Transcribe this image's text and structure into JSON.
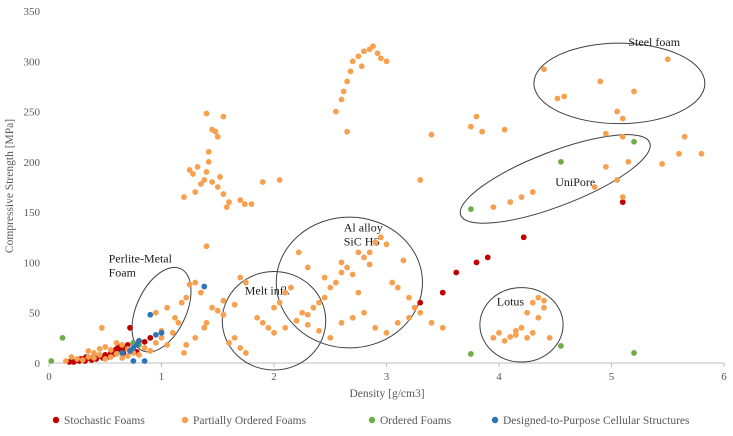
{
  "chart_data": {
    "type": "scatter",
    "xlabel": "Density [g/cm3]",
    "ylabel": "Compressive Strength [MPa]",
    "xlim": [
      0,
      6
    ],
    "ylim": [
      0,
      350
    ],
    "xticks": [
      0,
      1,
      2,
      3,
      4,
      5,
      6
    ],
    "yticks": [
      0,
      50,
      100,
      150,
      200,
      250,
      300,
      350
    ],
    "grid": false,
    "legend_position": "bottom",
    "series": [
      {
        "name": "Stochastic Foams",
        "color": "#c00000",
        "points": [
          [
            0.18,
            1
          ],
          [
            0.2,
            2
          ],
          [
            0.22,
            1
          ],
          [
            0.25,
            3
          ],
          [
            0.27,
            2
          ],
          [
            0.3,
            4
          ],
          [
            0.32,
            2
          ],
          [
            0.35,
            5
          ],
          [
            0.38,
            3
          ],
          [
            0.4,
            6
          ],
          [
            0.42,
            4
          ],
          [
            0.45,
            7
          ],
          [
            0.48,
            5
          ],
          [
            0.5,
            8
          ],
          [
            0.52,
            6
          ],
          [
            0.55,
            10
          ],
          [
            0.57,
            12
          ],
          [
            0.6,
            14
          ],
          [
            0.62,
            16
          ],
          [
            0.64,
            13
          ],
          [
            0.66,
            10
          ],
          [
            0.68,
            15
          ],
          [
            0.7,
            18
          ],
          [
            0.72,
            12
          ],
          [
            0.75,
            20
          ],
          [
            0.78,
            11
          ],
          [
            0.8,
            22
          ],
          [
            0.72,
            35
          ],
          [
            0.85,
            21
          ],
          [
            0.9,
            25
          ],
          [
            3.3,
            60
          ],
          [
            3.5,
            70
          ],
          [
            3.62,
            90
          ],
          [
            3.8,
            100
          ],
          [
            3.9,
            105
          ],
          [
            4.22,
            125
          ],
          [
            5.1,
            160
          ],
          [
            0.28,
            4
          ],
          [
            0.33,
            6
          ],
          [
            0.58,
            9
          ]
        ]
      },
      {
        "name": "Partially Ordered Foams",
        "color": "#f7a04f",
        "points": [
          [
            0.15,
            2
          ],
          [
            0.25,
            4
          ],
          [
            0.3,
            3
          ],
          [
            0.35,
            6
          ],
          [
            0.4,
            5
          ],
          [
            0.45,
            8
          ],
          [
            0.5,
            4
          ],
          [
            0.55,
            6
          ],
          [
            0.6,
            9
          ],
          [
            0.65,
            5
          ],
          [
            0.7,
            7
          ],
          [
            0.75,
            10
          ],
          [
            0.8,
            8
          ],
          [
            0.85,
            15
          ],
          [
            0.9,
            12
          ],
          [
            0.95,
            20
          ],
          [
            1.0,
            25
          ],
          [
            1.05,
            18
          ],
          [
            1.1,
            30
          ],
          [
            1.15,
            40
          ],
          [
            0.35,
            12
          ],
          [
            0.45,
            14
          ],
          [
            0.5,
            16
          ],
          [
            0.55,
            13
          ],
          [
            0.6,
            20
          ],
          [
            0.2,
            6
          ],
          [
            0.4,
            10
          ],
          [
            0.47,
            35
          ],
          [
            0.65,
            18
          ],
          [
            0.7,
            14
          ],
          [
            0.95,
            50
          ],
          [
            1.0,
            32
          ],
          [
            1.05,
            55
          ],
          [
            1.12,
            45
          ],
          [
            1.18,
            60
          ],
          [
            1.22,
            65
          ],
          [
            1.25,
            78
          ],
          [
            1.3,
            80
          ],
          [
            1.38,
            35
          ],
          [
            1.4,
            40
          ],
          [
            1.5,
            52
          ],
          [
            1.55,
            48
          ],
          [
            1.6,
            20
          ],
          [
            1.65,
            25
          ],
          [
            1.7,
            15
          ],
          [
            1.75,
            10
          ],
          [
            1.2,
            10
          ],
          [
            1.22,
            18
          ],
          [
            1.3,
            25
          ],
          [
            1.35,
            70
          ],
          [
            1.3,
            170
          ],
          [
            1.35,
            178
          ],
          [
            1.38,
            182
          ],
          [
            1.4,
            190
          ],
          [
            1.42,
            200
          ],
          [
            1.45,
            180
          ],
          [
            1.5,
            175
          ],
          [
            1.52,
            185
          ],
          [
            1.55,
            168
          ],
          [
            1.6,
            160
          ],
          [
            1.32,
            195
          ],
          [
            1.4,
            248
          ],
          [
            1.45,
            232
          ],
          [
            1.48,
            230
          ],
          [
            1.5,
            225
          ],
          [
            1.55,
            245
          ],
          [
            1.7,
            162
          ],
          [
            1.74,
            158
          ],
          [
            1.8,
            158
          ],
          [
            1.9,
            180
          ],
          [
            2.05,
            182
          ],
          [
            1.2,
            165
          ],
          [
            1.25,
            192
          ],
          [
            1.28,
            188
          ],
          [
            1.42,
            210
          ],
          [
            1.58,
            155
          ],
          [
            1.4,
            116
          ],
          [
            1.85,
            45
          ],
          [
            1.9,
            40
          ],
          [
            1.95,
            35
          ],
          [
            2.0,
            55
          ],
          [
            2.05,
            60
          ],
          [
            2.1,
            70
          ],
          [
            2.15,
            75
          ],
          [
            2.2,
            42
          ],
          [
            2.25,
            50
          ],
          [
            2.3,
            48
          ],
          [
            2.35,
            55
          ],
          [
            2.4,
            60
          ],
          [
            2.45,
            65
          ],
          [
            2.5,
            75
          ],
          [
            2.55,
            80
          ],
          [
            2.6,
            90
          ],
          [
            2.65,
            95
          ],
          [
            2.7,
            88
          ],
          [
            2.75,
            70
          ],
          [
            2.8,
            105
          ],
          [
            2.85,
            110
          ],
          [
            2.9,
            120
          ],
          [
            2.95,
            125
          ],
          [
            3.0,
            118
          ],
          [
            3.05,
            80
          ],
          [
            3.1,
            75
          ],
          [
            3.2,
            65
          ],
          [
            3.25,
            55
          ],
          [
            3.3,
            50
          ],
          [
            2.0,
            30
          ],
          [
            2.1,
            35
          ],
          [
            2.2,
            42
          ],
          [
            2.3,
            38
          ],
          [
            2.4,
            32
          ],
          [
            2.5,
            25
          ],
          [
            2.6,
            40
          ],
          [
            2.7,
            45
          ],
          [
            2.8,
            50
          ],
          [
            2.9,
            35
          ],
          [
            3.0,
            30
          ],
          [
            3.1,
            40
          ],
          [
            3.2,
            45
          ],
          [
            3.4,
            40
          ],
          [
            3.5,
            35
          ],
          [
            2.55,
            250
          ],
          [
            2.6,
            262
          ],
          [
            2.62,
            270
          ],
          [
            2.65,
            280
          ],
          [
            2.68,
            290
          ],
          [
            2.7,
            300
          ],
          [
            2.75,
            305
          ],
          [
            2.78,
            295
          ],
          [
            2.8,
            310
          ],
          [
            2.85,
            312
          ],
          [
            2.88,
            315
          ],
          [
            2.92,
            308
          ],
          [
            2.95,
            303
          ],
          [
            3.0,
            300
          ],
          [
            2.65,
            230
          ],
          [
            3.3,
            182
          ],
          [
            3.4,
            227
          ],
          [
            3.75,
            235
          ],
          [
            3.8,
            245
          ],
          [
            3.85,
            230
          ],
          [
            4.05,
            232
          ],
          [
            4.1,
            160
          ],
          [
            4.2,
            165
          ],
          [
            4.3,
            170
          ],
          [
            3.95,
            155
          ],
          [
            4.4,
            292
          ],
          [
            4.52,
            263
          ],
          [
            4.58,
            265
          ],
          [
            4.9,
            280
          ],
          [
            5.05,
            250
          ],
          [
            5.1,
            243
          ],
          [
            5.2,
            270
          ],
          [
            5.5,
            302
          ],
          [
            4.95,
            228
          ],
          [
            5.1,
            225
          ],
          [
            4.85,
            175
          ],
          [
            4.95,
            195
          ],
          [
            5.05,
            182
          ],
          [
            5.15,
            200
          ],
          [
            5.45,
            198
          ],
          [
            5.6,
            208
          ],
          [
            5.65,
            225
          ],
          [
            5.8,
            208
          ],
          [
            5.1,
            165
          ],
          [
            3.95,
            25
          ],
          [
            4.0,
            30
          ],
          [
            4.05,
            22
          ],
          [
            4.1,
            26
          ],
          [
            4.15,
            28
          ],
          [
            4.2,
            35
          ],
          [
            4.25,
            50
          ],
          [
            4.3,
            60
          ],
          [
            4.35,
            65
          ],
          [
            4.4,
            55
          ],
          [
            4.15,
            32
          ],
          [
            4.25,
            25
          ],
          [
            4.3,
            30
          ],
          [
            4.45,
            25
          ],
          [
            4.35,
            45
          ],
          [
            4.4,
            62
          ],
          [
            1.7,
            85
          ],
          [
            2.22,
            110
          ],
          [
            2.3,
            95
          ],
          [
            2.45,
            85
          ],
          [
            1.75,
            80
          ],
          [
            2.6,
            100
          ],
          [
            2.75,
            110
          ],
          [
            2.85,
            98
          ],
          [
            3.15,
            102
          ],
          [
            1.45,
            55
          ],
          [
            1.55,
            62
          ],
          [
            1.65,
            58
          ]
        ]
      },
      {
        "name": "Ordered Foams",
        "color": "#70ad47",
        "points": [
          [
            0.02,
            2
          ],
          [
            0.12,
            25
          ],
          [
            0.75,
            20
          ],
          [
            3.75,
            153
          ],
          [
            4.55,
            200
          ],
          [
            5.2,
            220
          ],
          [
            3.75,
            9
          ],
          [
            4.55,
            17
          ],
          [
            5.2,
            10
          ],
          [
            0.8,
            18
          ]
        ]
      },
      {
        "name": "Designed-to-Purpose Cellular Structures",
        "color": "#2e75b6",
        "points": [
          [
            0.72,
            12
          ],
          [
            0.75,
            15
          ],
          [
            0.78,
            18
          ],
          [
            0.8,
            22
          ],
          [
            0.95,
            28
          ],
          [
            1.0,
            30
          ],
          [
            0.9,
            48
          ],
          [
            1.38,
            76
          ],
          [
            0.65,
            10
          ],
          [
            0.85,
            2
          ],
          [
            0.75,
            2
          ]
        ]
      }
    ],
    "annotations": [
      {
        "lines": [
          "Steel foam"
        ],
        "cx": 5.07,
        "cy": 278,
        "rx": 0.76,
        "ry": 40,
        "rot": 0,
        "label_x": 5.15,
        "label_y": 315
      },
      {
        "lines": [
          "UniPore"
        ],
        "cx": 4.5,
        "cy": 183,
        "rx": 0.9,
        "ry": 27,
        "rot": -21,
        "label_x": 4.5,
        "label_y": 176
      },
      {
        "lines": [
          "Al alloy",
          "SiC HS"
        ],
        "cx": 2.67,
        "cy": 80,
        "rx": 0.65,
        "ry": 65,
        "rot": 0,
        "label_x": 2.62,
        "label_y": 131
      },
      {
        "lines": [
          "Melt infl."
        ],
        "cx": 2.0,
        "cy": 42,
        "rx": 0.46,
        "ry": 49,
        "rot": 0,
        "label_x": 1.74,
        "label_y": 68
      },
      {
        "lines": [
          "Perlite-Metal",
          "Foam"
        ],
        "cx": 1.0,
        "cy": 53,
        "rx": 0.22,
        "ry": 45,
        "rot": 25,
        "label_x": 0.53,
        "label_y": 100
      },
      {
        "lines": [
          "Lotus"
        ],
        "cx": 4.2,
        "cy": 38,
        "rx": 0.37,
        "ry": 37,
        "rot": 0,
        "label_x": 3.98,
        "label_y": 57
      }
    ]
  }
}
